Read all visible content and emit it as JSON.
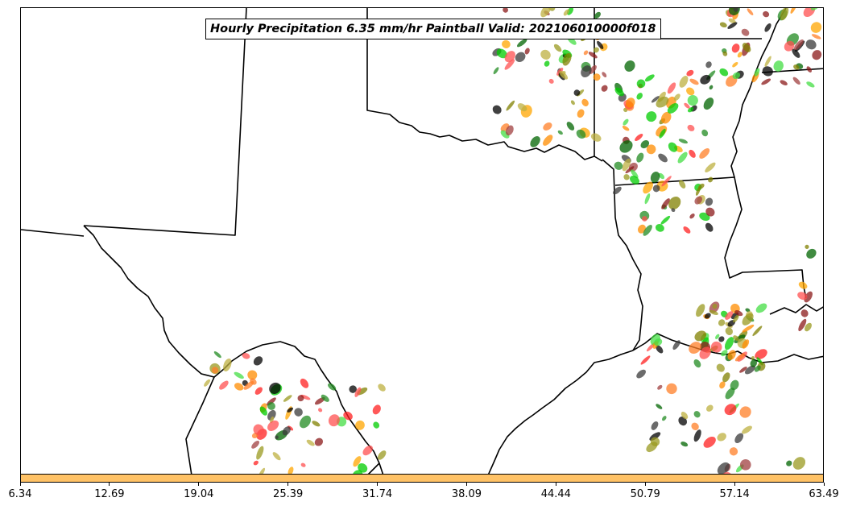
{
  "title": "Hourly Precipitation 6.35 mm/hr Paintball Valid: 202106010000f018",
  "colors": {
    "colorbar": "#ffc266",
    "border": "#000000",
    "paintball_palette": [
      "#006400",
      "#228b22",
      "#00cc00",
      "#44dd44",
      "#808000",
      "#9a9a20",
      "#bdb040",
      "#ff2020",
      "#ff5050",
      "#8b1a1a",
      "#a04040",
      "#ff8c00",
      "#ff7f27",
      "#ffa500",
      "#000000",
      "#3a3a3a"
    ]
  },
  "colorbar": {
    "ticks": [
      "6.34",
      "12.69",
      "19.04",
      "25.39",
      "31.74",
      "38.09",
      "44.44",
      "50.79",
      "57.14",
      "63.49"
    ]
  }
}
